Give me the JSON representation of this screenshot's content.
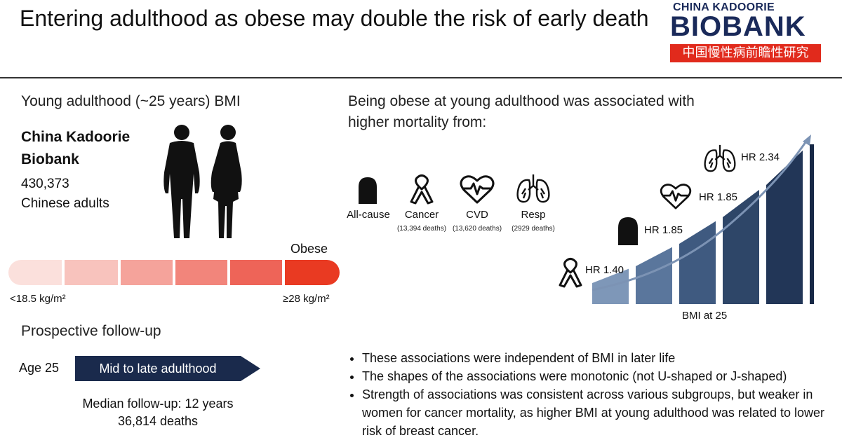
{
  "title": "Entering adulthood as obese may double the risk of early death",
  "logo": {
    "top": "CHINA KADOORIE",
    "main": "BIOBANK",
    "chinese": "中国慢性病前瞻性研究"
  },
  "left": {
    "heading": "Young adulthood (~25 years) BMI",
    "cohort_name_line1": "China Kadoorie",
    "cohort_name_line2": "Biobank",
    "cohort_count": "430,373",
    "cohort_desc": "Chinese adults",
    "scale_top_label": "Obese",
    "scale_left_label": "<18.5 kg/m²",
    "scale_right_label": "≥28 kg/m²",
    "scale_colors": [
      "#fbe0dc",
      "#f8c3bd",
      "#f5a39b",
      "#f2857b",
      "#ee6458",
      "#e93a22"
    ],
    "followup_heading": "Prospective follow-up",
    "age_label": "Age 25",
    "arrow_label": "Mid to late adulthood",
    "median_followup": "Median follow-up: 12 years",
    "deaths": "36,814 deaths"
  },
  "right": {
    "heading_line1": "Being obese at young adulthood was associated with",
    "heading_line2": "higher mortality from:",
    "causes": [
      {
        "label": "All-cause",
        "note": "",
        "icon": "tombstone-icon"
      },
      {
        "label": "Cancer",
        "note": "(13,394 deaths)",
        "icon": "ribbon-icon"
      },
      {
        "label": "CVD",
        "note": "(13,620 deaths)",
        "icon": "heart-icon"
      },
      {
        "label": "Resp",
        "note": "(2929 deaths)",
        "icon": "lungs-icon"
      }
    ],
    "hr": [
      {
        "label": "HR 1.40",
        "icon": "ribbon-icon"
      },
      {
        "label": "HR 1.85",
        "icon": "tombstone-icon"
      },
      {
        "label": "HR 1.85",
        "icon": "heart-icon"
      },
      {
        "label": "HR 2.34",
        "icon": "lungs-icon"
      }
    ],
    "bar_colors": [
      "#7e97b8",
      "#5a769c",
      "#3f5a80",
      "#2e4668",
      "#223657",
      "#172846"
    ],
    "axis_label": "BMI at 25",
    "bullets": [
      "These associations were independent of BMI in later life",
      "The shapes of the associations were monotonic (not U-shaped or J-shaped)",
      "Strength of associations was consistent across various subgroups, but weaker in women for cancer mortality, as higher BMI at young adulthood was related to lower risk of breast cancer."
    ]
  }
}
